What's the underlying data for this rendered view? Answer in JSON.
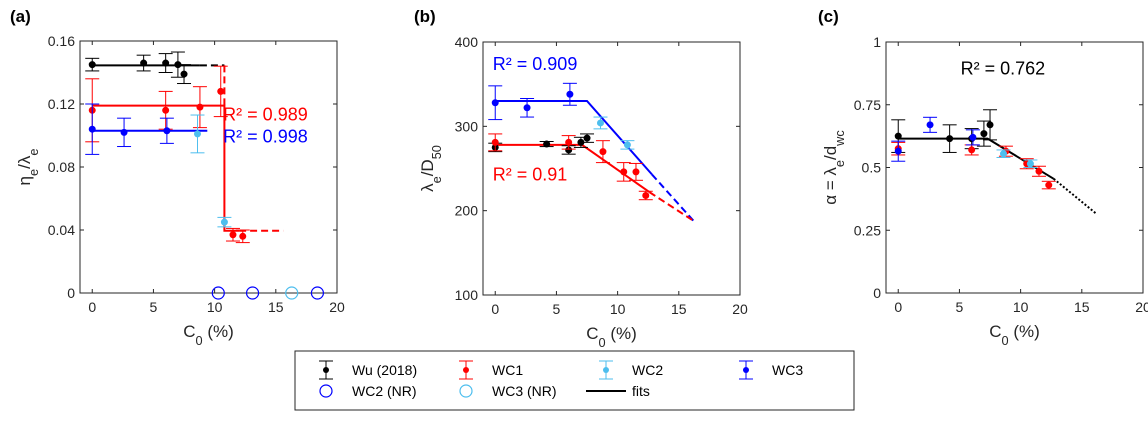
{
  "colors": {
    "wu": "#000000",
    "wc1": "#ff0000",
    "wc2": "#4dbeee",
    "wc3": "#0000ff",
    "axis": "#262626"
  },
  "legend": {
    "entries": [
      {
        "key": "wu",
        "label": "Wu (2018)",
        "marker": "errdot",
        "color": "#000000"
      },
      {
        "key": "wc1",
        "label": "WC1",
        "marker": "errdot",
        "color": "#ff0000"
      },
      {
        "key": "wc2",
        "label": "WC2",
        "marker": "errdot",
        "color": "#4dbeee"
      },
      {
        "key": "wc3",
        "label": "WC3",
        "marker": "errdot",
        "color": "#0000ff"
      },
      {
        "key": "wc2nr",
        "label": "WC2 (NR)",
        "marker": "circle",
        "color": "#0000ff"
      },
      {
        "key": "wc3nr",
        "label": "WC3 (NR)",
        "marker": "circle",
        "color": "#4dbeee"
      },
      {
        "key": "fits",
        "label": "fits",
        "marker": "line",
        "color": "#000000"
      }
    ]
  },
  "chart_data": [
    {
      "type": "scatter",
      "panel_label": "(a)",
      "xlabel": "C_0 (%)",
      "ylabel": "η_e/λ_e",
      "xlim": [
        -1,
        20
      ],
      "ylim": [
        0,
        0.16
      ],
      "xticks": [
        "0",
        "5",
        "10",
        "15",
        "20"
      ],
      "yticks": [
        "0",
        "0.04",
        "0.08",
        "0.12",
        "0.16"
      ],
      "series": [
        {
          "key": "wu",
          "points": [
            [
              0,
              0.145,
              0.004
            ],
            [
              4.2,
              0.146,
              0.005
            ],
            [
              6,
              0.146,
              0.006
            ],
            [
              7,
              0.145,
              0.008
            ],
            [
              7.5,
              0.139,
              0.006
            ]
          ]
        },
        {
          "key": "wc1",
          "points": [
            [
              0,
              0.116,
              0.02
            ],
            [
              6,
              0.116,
              0.012
            ],
            [
              8.8,
              0.118,
              0.013
            ],
            [
              10.5,
              0.128,
              0.016
            ],
            [
              11.5,
              0.037,
              0.004
            ],
            [
              12.3,
              0.036,
              0.004
            ]
          ]
        },
        {
          "key": "wc2",
          "points": [
            [
              8.6,
              0.101,
              0.012
            ],
            [
              10.8,
              0.045,
              0.003
            ]
          ]
        },
        {
          "key": "wc3",
          "points": [
            [
              0,
              0.104,
              0.016
            ],
            [
              2.6,
              0.102,
              0.009
            ],
            [
              6.1,
              0.103,
              0.008
            ]
          ]
        },
        {
          "key": "wc2nr",
          "points": [
            [
              10.3,
              0
            ],
            [
              13.1,
              0
            ],
            [
              18.4,
              0
            ]
          ]
        },
        {
          "key": "wc3nr",
          "points": [
            [
              16.3,
              0
            ]
          ]
        }
      ],
      "fits": [
        {
          "key": "wu",
          "style": "solid",
          "points": [
            [
              0,
              0.1445
            ],
            [
              8.8,
              0.1445
            ]
          ]
        },
        {
          "key": "wu",
          "style": "dashed",
          "points": [
            [
              8.8,
              0.1445
            ],
            [
              10.8,
              0.1445
            ]
          ]
        },
        {
          "key": "wc1",
          "style": "solid",
          "points": [
            [
              0,
              0.119
            ],
            [
              10.8,
              0.119
            ],
            [
              10.8,
              0.0395
            ],
            [
              12,
              0.0395
            ]
          ]
        },
        {
          "key": "wc1",
          "style": "dashed",
          "points": [
            [
              10.8,
              0.1445
            ],
            [
              10.8,
              0.119
            ]
          ]
        },
        {
          "key": "wc1",
          "style": "dashed",
          "points": [
            [
              12,
              0.0395
            ],
            [
              15.6,
              0.0395
            ]
          ]
        },
        {
          "key": "wc3",
          "style": "solid",
          "points": [
            [
              0,
              0.103
            ],
            [
              9.4,
              0.103
            ]
          ]
        }
      ],
      "annotations": [
        {
          "text": "R² = 0.989",
          "color": "#ff0000",
          "x": 10.7,
          "y": 0.1095
        },
        {
          "text": "R² = 0.998",
          "color": "#0000ff",
          "x": 10.7,
          "y": 0.0955
        }
      ]
    },
    {
      "type": "scatter",
      "panel_label": "(b)",
      "xlabel": "C_0 (%)",
      "ylabel": "λ_e/D_50",
      "xlim": [
        -1,
        20
      ],
      "ylim": [
        100,
        400
      ],
      "xticks": [
        "0",
        "5",
        "10",
        "15",
        "20"
      ],
      "yticks": [
        "100",
        "200",
        "300",
        "400"
      ],
      "series": [
        {
          "key": "wu",
          "points": [
            [
              0,
              275,
              5
            ],
            [
              4.2,
              279,
              3
            ],
            [
              6,
              272,
              5
            ],
            [
              7,
              281,
              6
            ],
            [
              7.5,
              286,
              5
            ]
          ]
        },
        {
          "key": "wc1",
          "points": [
            [
              0,
              281,
              10
            ],
            [
              6,
              281,
              8
            ],
            [
              8.8,
              270,
              13
            ],
            [
              10.5,
              246,
              11
            ],
            [
              11.5,
              246,
              10
            ],
            [
              12.3,
              218,
              5
            ]
          ]
        },
        {
          "key": "wc2",
          "points": [
            [
              8.6,
              304,
              7
            ],
            [
              10.8,
              278,
              5
            ]
          ]
        },
        {
          "key": "wc3",
          "points": [
            [
              0,
              328,
              20
            ],
            [
              2.6,
              322,
              11
            ],
            [
              6.1,
              338,
              13
            ]
          ]
        }
      ],
      "fits": [
        {
          "key": "wc3",
          "style": "solid",
          "points": [
            [
              0,
              330
            ],
            [
              7.5,
              330
            ],
            [
              12.8,
              243
            ]
          ]
        },
        {
          "key": "wc3",
          "style": "dashed",
          "points": [
            [
              12.8,
              243
            ],
            [
              16.2,
              188
            ]
          ]
        },
        {
          "key": "wc1",
          "style": "solid",
          "points": [
            [
              0,
              278
            ],
            [
              7.1,
              278
            ],
            [
              12.6,
              222
            ]
          ]
        },
        {
          "key": "wc1",
          "style": "dashed",
          "points": [
            [
              12.6,
              222
            ],
            [
              16.2,
              188
            ]
          ]
        }
      ],
      "annotations": [
        {
          "text": "R² = 0.909",
          "color": "#0000ff",
          "x": -0.2,
          "y": 367
        },
        {
          "text": "R² = 0.91",
          "color": "#ff0000",
          "x": -0.2,
          "y": 236
        }
      ]
    },
    {
      "type": "scatter",
      "panel_label": "(c)",
      "xlabel": "C_0 (%)",
      "ylabel": "α = λ_e/d_wc",
      "xlim": [
        -1,
        20
      ],
      "ylim": [
        0,
        1
      ],
      "xticks": [
        "0",
        "5",
        "10",
        "15",
        "20"
      ],
      "yticks": [
        "0",
        "0.25",
        "0.5",
        "0.75",
        "1"
      ],
      "series": [
        {
          "key": "wu",
          "points": [
            [
              0,
              0.625,
              0.065
            ],
            [
              4.2,
              0.615,
              0.055
            ],
            [
              6,
              0.615,
              0.04
            ],
            [
              7,
              0.635,
              0.05
            ],
            [
              7.5,
              0.67,
              0.06
            ]
          ]
        },
        {
          "key": "wc1",
          "points": [
            [
              0,
              0.575,
              0.025
            ],
            [
              6,
              0.57,
              0.02
            ],
            [
              8.8,
              0.565,
              0.02
            ],
            [
              10.5,
              0.515,
              0.02
            ],
            [
              11.5,
              0.485,
              0.02
            ],
            [
              12.3,
              0.43,
              0.015
            ]
          ]
        },
        {
          "key": "wc2",
          "points": [
            [
              8.6,
              0.555,
              0.015
            ],
            [
              10.8,
              0.515,
              0.015
            ]
          ]
        },
        {
          "key": "wc3",
          "points": [
            [
              0,
              0.565,
              0.04
            ],
            [
              2.6,
              0.67,
              0.03
            ],
            [
              6.1,
              0.62,
              0.03
            ]
          ]
        }
      ],
      "fits": [
        {
          "key": "wu",
          "style": "solid",
          "points": [
            [
              0,
              0.615
            ],
            [
              7.3,
              0.615
            ],
            [
              12.7,
              0.455
            ]
          ]
        },
        {
          "key": "wu",
          "style": "dotted",
          "points": [
            [
              12.7,
              0.455
            ],
            [
              16.2,
              0.315
            ]
          ]
        }
      ],
      "annotations": [
        {
          "text": "R² = 0.762",
          "color": "#000000",
          "x": 5.1,
          "y": 0.87
        }
      ]
    }
  ]
}
